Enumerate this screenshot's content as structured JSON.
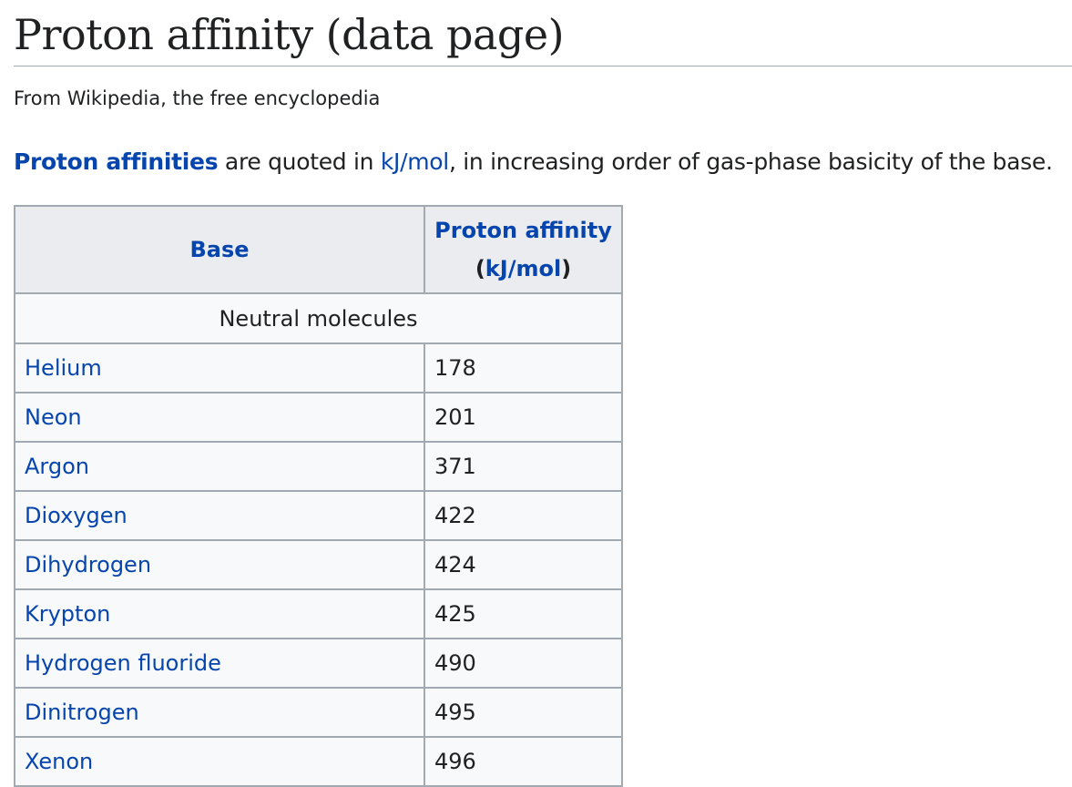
{
  "page": {
    "title": "Proton affinity (data page)",
    "tagline": "From Wikipedia, the free encyclopedia"
  },
  "intro": {
    "link_proton_affinities": "Proton affinities",
    "text_1": " are quoted in ",
    "link_kjmol": "kJ/mol",
    "text_2": ", in increasing order of gas-phase basicity of the base."
  },
  "table": {
    "header_base": "Base",
    "header_pa_line1": "Proton affinity",
    "header_pa_open": "(",
    "header_pa_unit": "kJ/mol",
    "header_pa_close": ")",
    "section_neutral": "Neutral molecules",
    "rows": [
      {
        "base": "Helium",
        "value": "178"
      },
      {
        "base": "Neon",
        "value": "201"
      },
      {
        "base": "Argon",
        "value": "371"
      },
      {
        "base": "Dioxygen",
        "value": "422"
      },
      {
        "base": "Dihydrogen",
        "value": "424"
      },
      {
        "base": "Krypton",
        "value": "425"
      },
      {
        "base": "Hydrogen fluoride",
        "value": "490"
      },
      {
        "base": "Dinitrogen",
        "value": "495"
      },
      {
        "base": "Xenon",
        "value": "496"
      }
    ]
  },
  "colors": {
    "link": "#0645ad",
    "text": "#202122",
    "border": "#a2a9b1",
    "header_bg": "#eaecf0",
    "cell_bg": "#f8f9fa"
  }
}
